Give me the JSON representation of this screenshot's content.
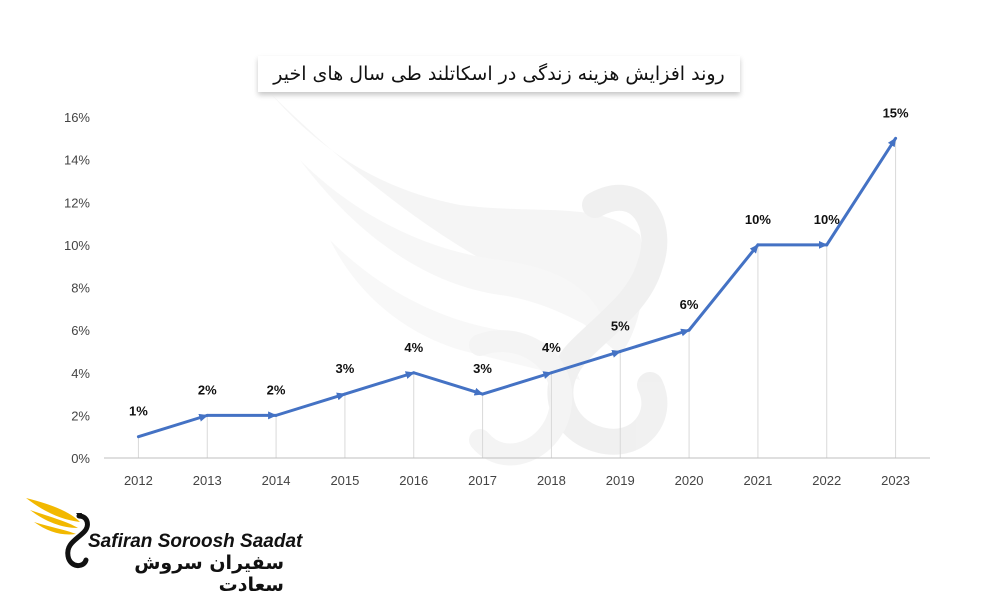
{
  "chart_data": {
    "type": "line",
    "title": "روند افزایش هزینه زندگی در اسکاتلند طی سال های اخیر",
    "xlabel": "",
    "ylabel": "",
    "categories": [
      "2012",
      "2013",
      "2014",
      "2015",
      "2016",
      "2017",
      "2018",
      "2019",
      "2020",
      "2021",
      "2022",
      "2023"
    ],
    "values": [
      1,
      2,
      2,
      3,
      4,
      3,
      4,
      5,
      6,
      10,
      10,
      15
    ],
    "data_labels": [
      "1%",
      "2%",
      "2%",
      "3%",
      "4%",
      "3%",
      "4%",
      "5%",
      "6%",
      "10%",
      "10%",
      "15%"
    ],
    "y_ticks": [
      "0%",
      "2%",
      "4%",
      "6%",
      "8%",
      "10%",
      "12%",
      "14%",
      "16%"
    ],
    "ylim": [
      0,
      16
    ],
    "grid": "vertical",
    "line_color": "#4472C4",
    "markers": "arrows"
  },
  "brand": {
    "name": "Safiran Soroosh Saadat",
    "name_fa": "سفیران سروش سعادت",
    "logo_icon": "swan-wing-logo",
    "accent_color": "#F2B800"
  }
}
